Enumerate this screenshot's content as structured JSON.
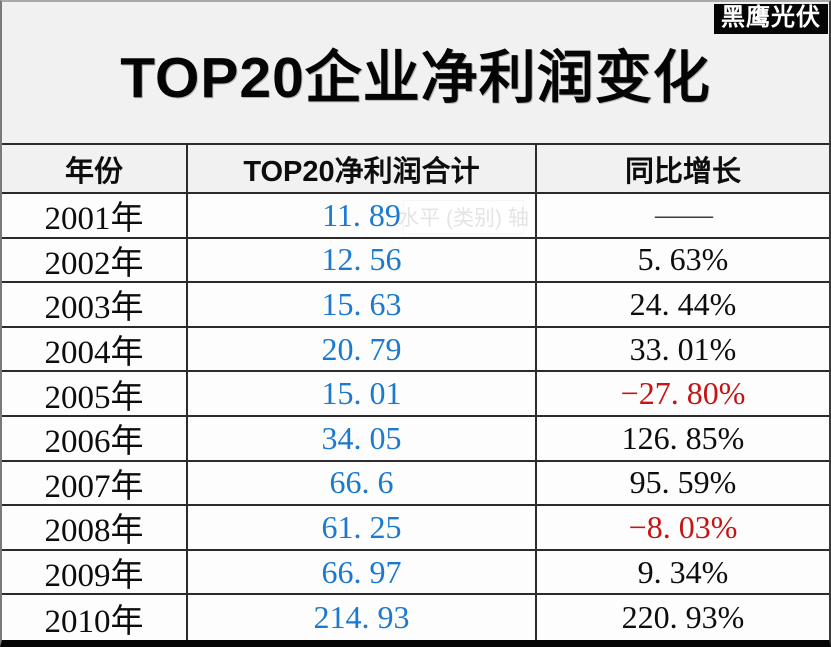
{
  "brand": {
    "logo_text": "黑鹰光伏",
    "bg_color": "#050505",
    "fg_color": "#ffffff"
  },
  "title": "TOP20企业净利润变化",
  "watermark": {
    "text": "水平 (类别) 轴"
  },
  "colors": {
    "profit_blue": "#1b79cf",
    "negative_red": "#c51414",
    "grid_line": "#2b2b2b",
    "text": "#0d0d0d"
  },
  "table": {
    "headers": [
      "年份",
      "TOP20净利润合计",
      "同比增长"
    ],
    "rows": [
      {
        "year": "2001年",
        "profit": "11. 89",
        "growth": "——",
        "negative": false,
        "dash": true
      },
      {
        "year": "2002年",
        "profit": "12. 56",
        "growth": "5. 63%",
        "negative": false,
        "dash": false
      },
      {
        "year": "2003年",
        "profit": "15. 63",
        "growth": "24. 44%",
        "negative": false,
        "dash": false
      },
      {
        "year": "2004年",
        "profit": "20. 79",
        "growth": "33. 01%",
        "negative": false,
        "dash": false
      },
      {
        "year": "2005年",
        "profit": "15. 01",
        "growth": "−27. 80%",
        "negative": true,
        "dash": false
      },
      {
        "year": "2006年",
        "profit": "34. 05",
        "growth": "126. 85%",
        "negative": false,
        "dash": false
      },
      {
        "year": "2007年",
        "profit": "66. 6",
        "growth": "95. 59%",
        "negative": false,
        "dash": false
      },
      {
        "year": "2008年",
        "profit": "61. 25",
        "growth": "−8. 03%",
        "negative": true,
        "dash": false
      },
      {
        "year": "2009年",
        "profit": "66. 97",
        "growth": "9. 34%",
        "negative": false,
        "dash": false
      },
      {
        "year": "2010年",
        "profit": "214. 93",
        "growth": "220. 93%",
        "negative": false,
        "dash": false
      }
    ]
  },
  "chart_data": {
    "type": "table",
    "title": "TOP20企业净利润变化",
    "columns": [
      "年份",
      "TOP20净利润合计",
      "同比增长"
    ],
    "years": [
      "2001",
      "2002",
      "2003",
      "2004",
      "2005",
      "2006",
      "2007",
      "2008",
      "2009",
      "2010"
    ],
    "profit_total": [
      11.89,
      12.56,
      15.63,
      20.79,
      15.01,
      34.05,
      66.6,
      61.25,
      66.97,
      214.93
    ],
    "yoy_growth_pct": [
      null,
      5.63,
      24.44,
      33.01,
      -27.8,
      126.85,
      95.59,
      -8.03,
      9.34,
      220.93
    ]
  }
}
